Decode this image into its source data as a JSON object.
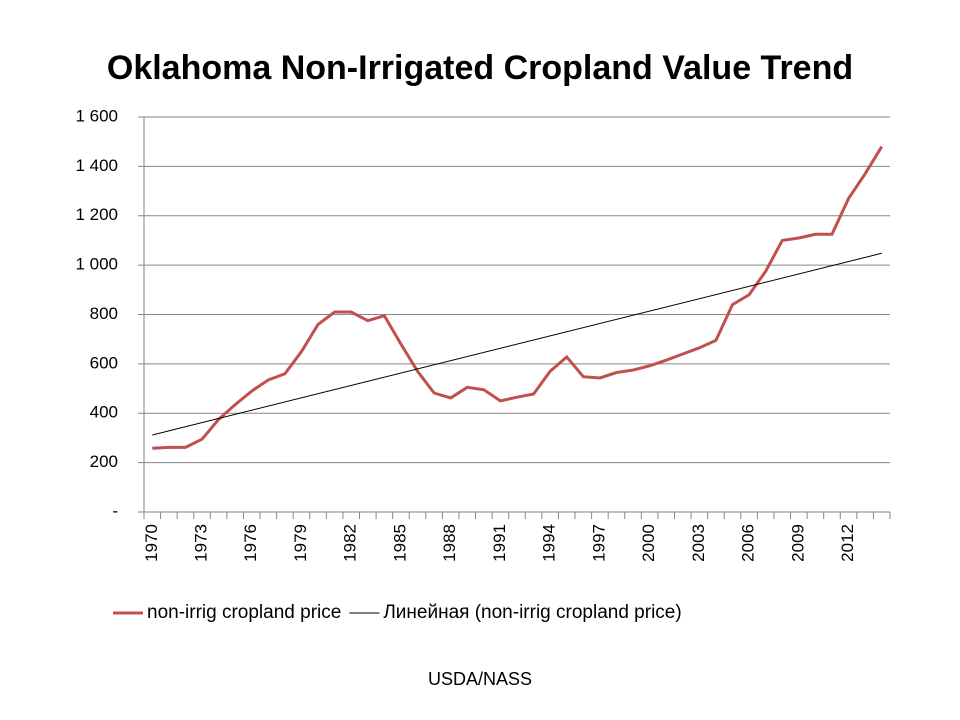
{
  "chart_data": {
    "type": "line",
    "title": "Oklahoma Non-Irrigated Cropland Value Trend",
    "source": "USDA/NASS",
    "x": [
      1970,
      1971,
      1972,
      1973,
      1974,
      1975,
      1976,
      1977,
      1978,
      1979,
      1980,
      1981,
      1982,
      1983,
      1984,
      1985,
      1986,
      1987,
      1988,
      1989,
      1990,
      1991,
      1992,
      1993,
      1994,
      1995,
      1996,
      1997,
      1998,
      1999,
      2000,
      2001,
      2002,
      2003,
      2004,
      2005,
      2006,
      2007,
      2008,
      2009,
      2010,
      2011,
      2012,
      2013,
      2014
    ],
    "series": [
      {
        "name": "non-irrig cropland price",
        "color": "#c0504d",
        "values": [
          258,
          262,
          262,
          295,
          375,
          435,
          490,
          535,
          560,
          650,
          760,
          810,
          810,
          775,
          795,
          680,
          570,
          482,
          462,
          505,
          495,
          450,
          465,
          478,
          570,
          628,
          548,
          543,
          565,
          575,
          592,
          615,
          640,
          665,
          695,
          840,
          880,
          975,
          1100,
          1110,
          1125,
          1125,
          1270,
          1370,
          1480
        ]
      },
      {
        "name": "Линейная (non-irrig cropland price)",
        "color": "#000000",
        "x": [
          1970,
          2014
        ],
        "values": [
          312,
          1048
        ]
      }
    ],
    "xlim": [
      1969.5,
      2014.5
    ],
    "xticks": [
      1970,
      1973,
      1976,
      1979,
      1982,
      1985,
      1988,
      1991,
      1994,
      1997,
      2000,
      2003,
      2006,
      2009,
      2012
    ],
    "ylim": [
      0,
      1600
    ],
    "yticks": [
      {
        "value": 0,
        "label": "-"
      },
      200,
      400,
      600,
      800,
      {
        "value": 1000,
        "label": "1 000"
      },
      {
        "value": 1200,
        "label": "1 200"
      },
      {
        "value": 1400,
        "label": "1 400"
      },
      {
        "value": 1600,
        "label": "1 600"
      }
    ],
    "grid": true,
    "legend": "bottom"
  }
}
